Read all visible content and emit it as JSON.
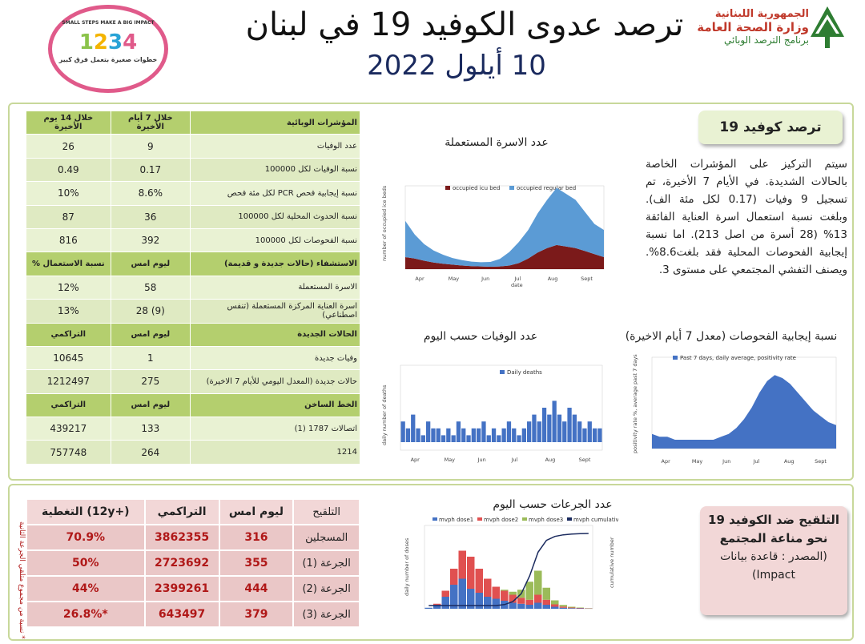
{
  "header": {
    "title": "ترصد عدوى الكوفيد 19 في لبنان",
    "date": "10 أيلول 2022",
    "ministry_line1": "الجمهورية اللبنانية",
    "ministry_line2": "وزارة الصحة العامة",
    "ministry_line3": "برنامج الترصد الوبائي",
    "badge_top": "SMALL STEPS MAKE A BIG IMPACT",
    "badge_nums": "1 2 3 4",
    "badge_bottom": "خطوات صغيرة بتعمل فرق كبير"
  },
  "indicators": {
    "header": [
      "المؤشرات الوبائية",
      "خلال 7 أيام الأخيرة",
      "خلال 14 يوم الأخيرة"
    ],
    "rows": [
      [
        "عدد الوفيات",
        "9",
        "26"
      ],
      [
        "نسبة الوفيات لكل 100000",
        "0.17",
        "0.49"
      ],
      [
        "نسبة إيجابية فحص PCR لكل مئة فحص",
        "8.6%",
        "10%"
      ],
      [
        "نسبة الحدوث المحلية لكل 100000",
        "36",
        "87"
      ],
      [
        "نسبة الفحوصات لكل 100000",
        "392",
        "816"
      ]
    ],
    "hosp_header": [
      "الاستشفاء (حالات جديدة و قديمة)",
      "ليوم امس",
      "% نسبة الاستعمال"
    ],
    "hosp_rows": [
      [
        "الاسرة المستعملة",
        "58",
        "12%"
      ],
      [
        "اسرة العناية المركزة المستعملة (تنفس اصطناعي)",
        "28 (9)",
        "13%"
      ]
    ],
    "new_header": [
      "الحالات الجديدة",
      "ليوم امس",
      "التراكمي"
    ],
    "new_rows": [
      [
        "وفيات جديدة",
        "1",
        "10645"
      ],
      [
        "حالات جديدة (المعدل اليومي للأيام 7 الاخيرة)",
        "275",
        "1212497"
      ]
    ],
    "hot_header": [
      "الخط الساخن",
      "ليوم امس",
      "التراكمي"
    ],
    "hot_rows": [
      [
        "اتصالات 1787 (1)",
        "133",
        "439217"
      ],
      [
        "1214",
        "264",
        "757748"
      ]
    ]
  },
  "covid_box": {
    "title": "ترصد كوفيد 19",
    "text": "سيتم التركيز على المؤشرات الخاصة بالحالات الشديدة. في الأيام 7 الأخيرة، تم تسجيل 9 وفيات (0.17 لكل مئة الف). وبلغت نسبة استعمال اسرة العناية الفائقة 13% (28 أسرة من اصل 213). اما نسبة إيجابية الفحوصات المحلية فقد بلغت8.6%. ويصنف التفشي المجتمعي على مستوى 3."
  },
  "charts": {
    "beds_title": "عدد الاسرة المستعملة",
    "beds_legend": [
      "occupied icu bed",
      "occupied regular bed"
    ],
    "beds_ylabel": "number of occupied ice beds",
    "beds_xlabel": "date",
    "beds_months": [
      "Apr",
      "May",
      "Jun",
      "Jul",
      "Aug",
      "Sept"
    ],
    "deaths_title": "عدد الوفيات حسب اليوم",
    "deaths_legend": "Daily deaths",
    "deaths_ylabel": "daily number of deaths",
    "deaths_months": [
      "Apr",
      "May",
      "Jun",
      "Jul",
      "Aug",
      "Sept"
    ],
    "positivity_title": "نسبة إيجابية الفحوصات (معدل 7 أيام الاخيرة)",
    "positivity_legend": "Past 7 days, daily average, positivity rate",
    "positivity_ylabel": "positivity rate %, average past 7 days",
    "positivity_months": [
      "Apr",
      "May",
      "Jun",
      "Jul",
      "Aug",
      "Sept"
    ],
    "doses_title": "عدد الجرعات حسب اليوم",
    "doses_legend": [
      "mvph dose1",
      "mvph dose2",
      "mvph dose3",
      "mvph cumulative dose3"
    ],
    "doses_ylabel": "daily number of doses",
    "doses_ylabel2": "cumulative number"
  },
  "vaccination": {
    "header": [
      "التلقيح",
      "ليوم امس",
      "التراكمي",
      "التغطية (12y+)"
    ],
    "rows": [
      [
        "المسجلين",
        "316",
        "3862355",
        "70.9%"
      ],
      [
        "الجرعة (1)",
        "355",
        "2723692",
        "50%"
      ],
      [
        "الجرعة (2)",
        "444",
        "2399261",
        "44%"
      ],
      [
        "الجرعة (3)",
        "379",
        "643497",
        "26.8%*"
      ]
    ],
    "note": "* نسبة من مجموع متلقي الجرعة الثانية",
    "box_line1": "التلقيح ضد الكوفيد 19 نحو مناعة المجتمع",
    "box_line2": "(المصدر : قاعدة بيانات Impact)"
  },
  "chart_data": [
    {
      "type": "area",
      "title": "عدد الاسرة المستعملة",
      "series": [
        {
          "name": "occupied icu bed",
          "values": [
            40,
            35,
            28,
            22,
            18,
            15,
            12,
            10,
            9,
            8,
            9,
            12,
            20,
            35,
            55,
            70,
            80,
            75,
            70,
            60,
            50,
            40
          ]
        },
        {
          "name": "occupied regular bed",
          "values": [
            120,
            80,
            55,
            40,
            30,
            22,
            18,
            15,
            14,
            16,
            25,
            45,
            70,
            95,
            130,
            160,
            190,
            175,
            160,
            130,
            100,
            90
          ]
        }
      ],
      "ylim": [
        0,
        250
      ]
    },
    {
      "type": "bar",
      "title": "عدد الوفيات حسب اليوم",
      "series": [
        {
          "name": "Daily deaths",
          "values": [
            3,
            2,
            4,
            2,
            1,
            3,
            2,
            2,
            1,
            2,
            1,
            3,
            2,
            1,
            2,
            2,
            3,
            1,
            2,
            1,
            2,
            3,
            2,
            1,
            2,
            3,
            4,
            3,
            5,
            4,
            6,
            4,
            3,
            5,
            4,
            3,
            2,
            3,
            2,
            2
          ]
        }
      ],
      "ylim": [
        0,
        10
      ]
    },
    {
      "type": "area",
      "title": "نسبة إيجابية الفحوصات (معدل 7 أيام الاخيرة)",
      "series": [
        {
          "name": "Past 7 days, daily average, positivity rate",
          "values": [
            5,
            4,
            4,
            3,
            3,
            3,
            3,
            3,
            3,
            4,
            5,
            7,
            10,
            14,
            19,
            23,
            25,
            24,
            22,
            19,
            16,
            13,
            11,
            9,
            8
          ]
        }
      ],
      "ylim": [
        0,
        30
      ]
    },
    {
      "type": "bar",
      "title": "عدد الجرعات حسب اليوم",
      "series": [
        {
          "name": "mvph dose1",
          "values": [
            500,
            2000,
            6000,
            12000,
            15000,
            10000,
            8000,
            6000,
            5000,
            4000,
            3000,
            2500,
            2000,
            3000,
            2000,
            1000,
            500,
            300,
            200,
            100
          ]
        },
        {
          "name": "mvph dose2",
          "values": [
            0,
            500,
            3000,
            8000,
            14000,
            16000,
            12000,
            9000,
            6000,
            5000,
            4000,
            3000,
            2500,
            4000,
            2500,
            1200,
            600,
            300,
            200,
            100
          ]
        },
        {
          "name": "mvph dose3",
          "values": [
            0,
            0,
            0,
            0,
            0,
            0,
            0,
            0,
            0,
            500,
            1500,
            4000,
            9000,
            12000,
            6000,
            2000,
            800,
            400,
            200,
            100
          ]
        }
      ],
      "ylim": [
        0,
        40000
      ]
    }
  ]
}
